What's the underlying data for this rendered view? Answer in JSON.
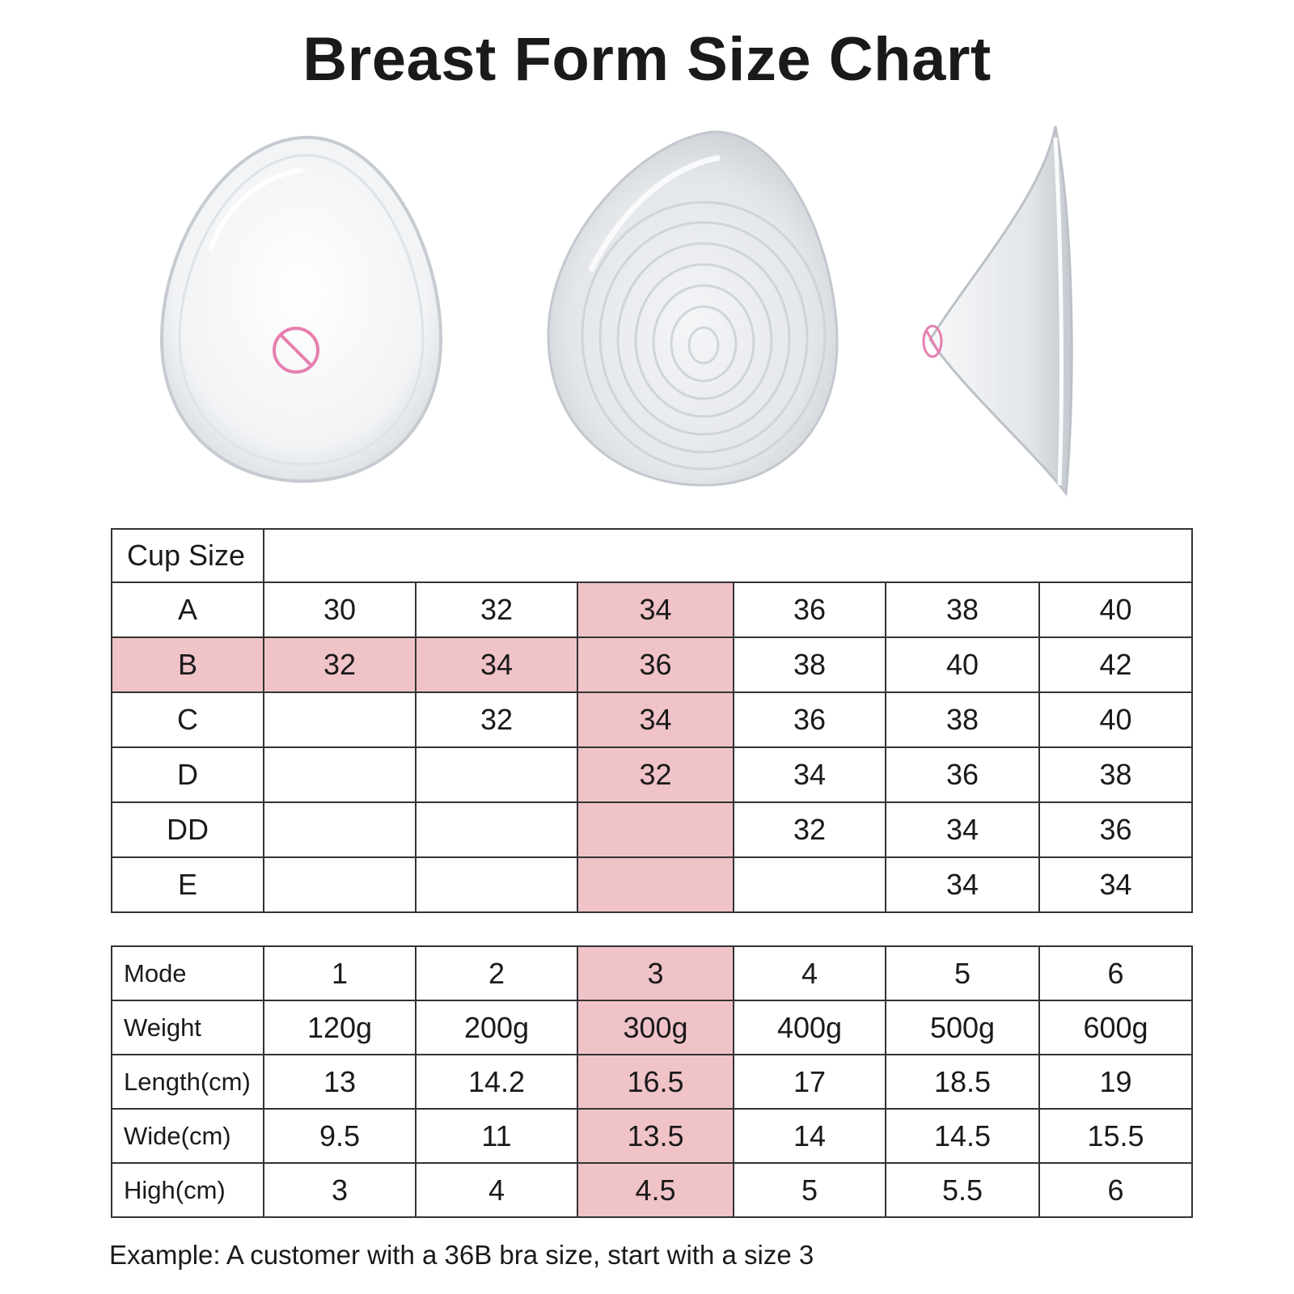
{
  "title": "Breast Form Size Chart",
  "colors": {
    "highlight": "#f0c3c8",
    "border": "#333333",
    "nipple_mark": "#e77fb0"
  },
  "illustrations": [
    "front-view",
    "back-textured-view",
    "side-profile-view"
  ],
  "chart_data": {
    "type": "table",
    "tables": [
      {
        "header_label": "Cup Size",
        "rows": [
          {
            "label": "A",
            "cells": [
              "30",
              "32",
              "34",
              "36",
              "38",
              "40"
            ]
          },
          {
            "label": "B",
            "cells": [
              "32",
              "34",
              "36",
              "38",
              "40",
              "42"
            ]
          },
          {
            "label": "C",
            "cells": [
              "",
              "32",
              "34",
              "36",
              "38",
              "40"
            ]
          },
          {
            "label": "D",
            "cells": [
              "",
              "",
              "32",
              "34",
              "36",
              "38"
            ]
          },
          {
            "label": "DD",
            "cells": [
              "",
              "",
              "",
              "32",
              "34",
              "36"
            ]
          },
          {
            "label": "E",
            "cells": [
              "",
              "",
              "",
              "",
              "34",
              "34"
            ]
          }
        ],
        "highlighted_row": "B",
        "highlighted_column": 3
      },
      {
        "rows": [
          {
            "label": "Mode",
            "cells": [
              "1",
              "2",
              "3",
              "4",
              "5",
              "6"
            ]
          },
          {
            "label": "Weight",
            "cells": [
              "120g",
              "200g",
              "300g",
              "400g",
              "500g",
              "600g"
            ]
          },
          {
            "label": "Length(cm)",
            "cells": [
              "13",
              "14.2",
              "16.5",
              "17",
              "18.5",
              "19"
            ]
          },
          {
            "label": "Wide(cm)",
            "cells": [
              "9.5",
              "11",
              "13.5",
              "14",
              "14.5",
              "15.5"
            ]
          },
          {
            "label": "High(cm)",
            "cells": [
              "3",
              "4",
              "4.5",
              "5",
              "5.5",
              "6"
            ]
          }
        ],
        "highlighted_column": 3
      }
    ]
  },
  "note": "Example: A customer with a 36B bra size,  start with a size 3"
}
